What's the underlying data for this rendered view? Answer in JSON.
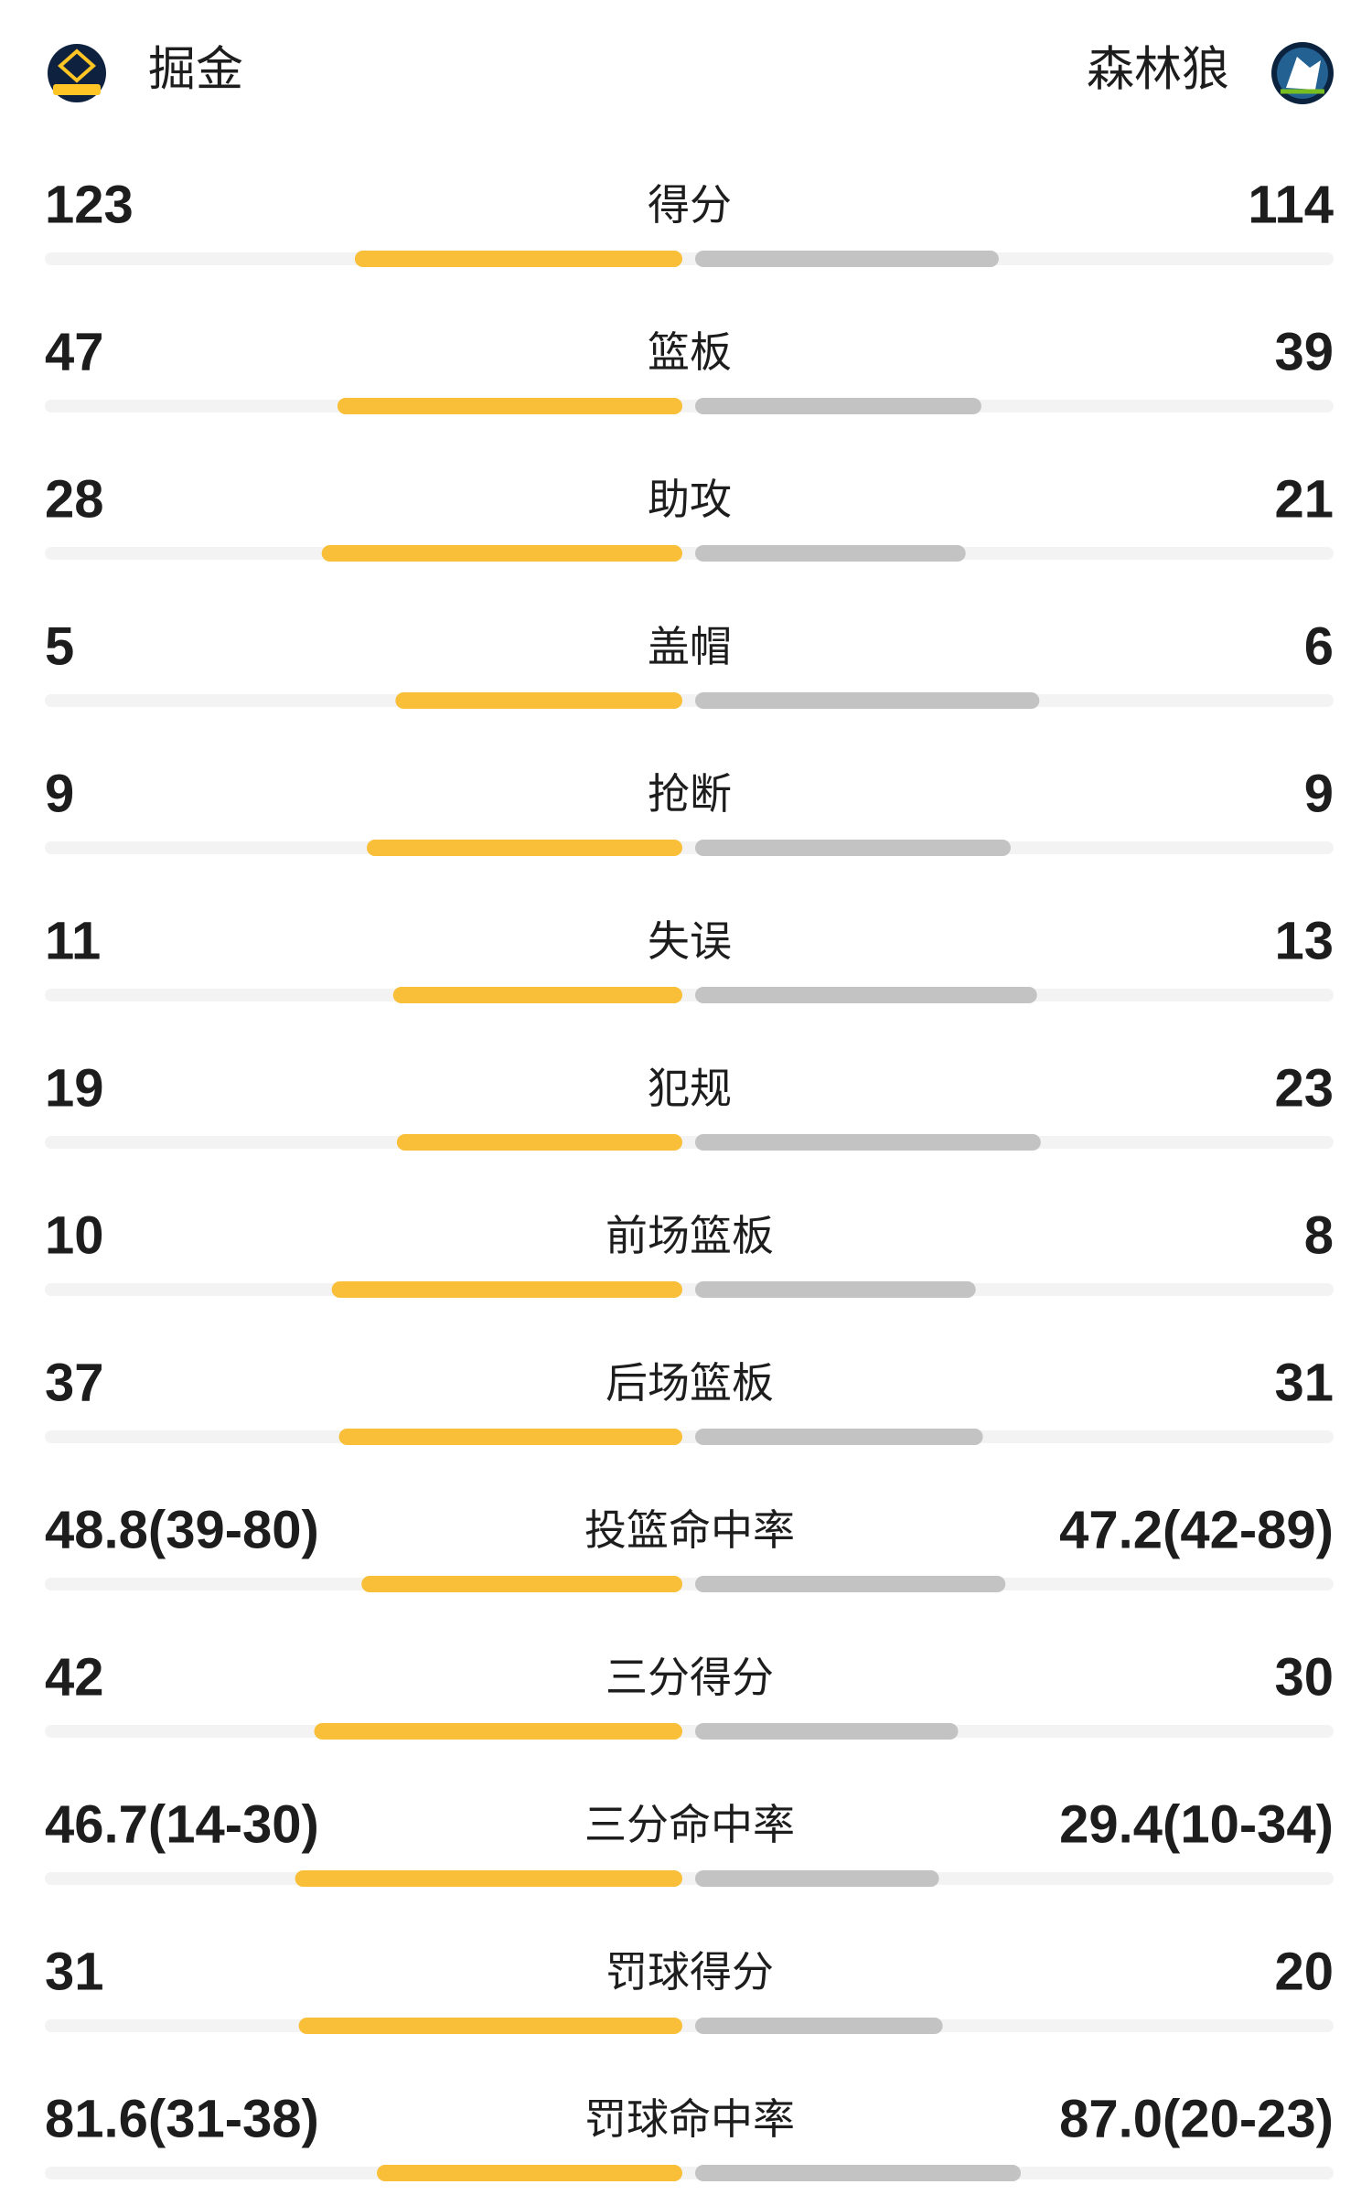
{
  "teams": {
    "home": {
      "name": "掘金"
    },
    "away": {
      "name": "森林狼"
    }
  },
  "stats": [
    {
      "name": "得分",
      "home": 123,
      "away": 114
    },
    {
      "name": "篮板",
      "home": 47,
      "away": 39
    },
    {
      "name": "助攻",
      "home": 28,
      "away": 21
    },
    {
      "name": "盖帽",
      "home": 5,
      "away": 6
    },
    {
      "name": "抢断",
      "home": 9,
      "away": 9
    },
    {
      "name": "失误",
      "home": 11,
      "away": 13
    },
    {
      "name": "犯规",
      "home": 19,
      "away": 23
    },
    {
      "name": "前场篮板",
      "home": 10,
      "away": 8
    },
    {
      "name": "后场篮板",
      "home": 37,
      "away": 31
    },
    {
      "name": "投篮命中率",
      "home": {
        "value": 48.8,
        "label": "48.8(39-80)"
      },
      "away": {
        "value": 47.2,
        "label": "47.2(42-89)"
      }
    },
    {
      "name": "三分得分",
      "home": 42,
      "away": 30
    },
    {
      "name": "三分命中率",
      "home": {
        "value": 46.7,
        "label": "46.7(14-30)"
      },
      "away": {
        "value": 29.4,
        "label": "29.4(10-34)"
      }
    },
    {
      "name": "罚球得分",
      "home": 31,
      "away": 20
    },
    {
      "name": "罚球命中率",
      "home": {
        "value": 81.6,
        "label": "81.6(31-38)"
      },
      "away": {
        "value": 87.0,
        "label": "87.0(20-23)"
      }
    }
  ],
  "colors": {
    "home": "#f9bf38",
    "away": "#c3c3c3",
    "track": "#f3f3f3"
  }
}
